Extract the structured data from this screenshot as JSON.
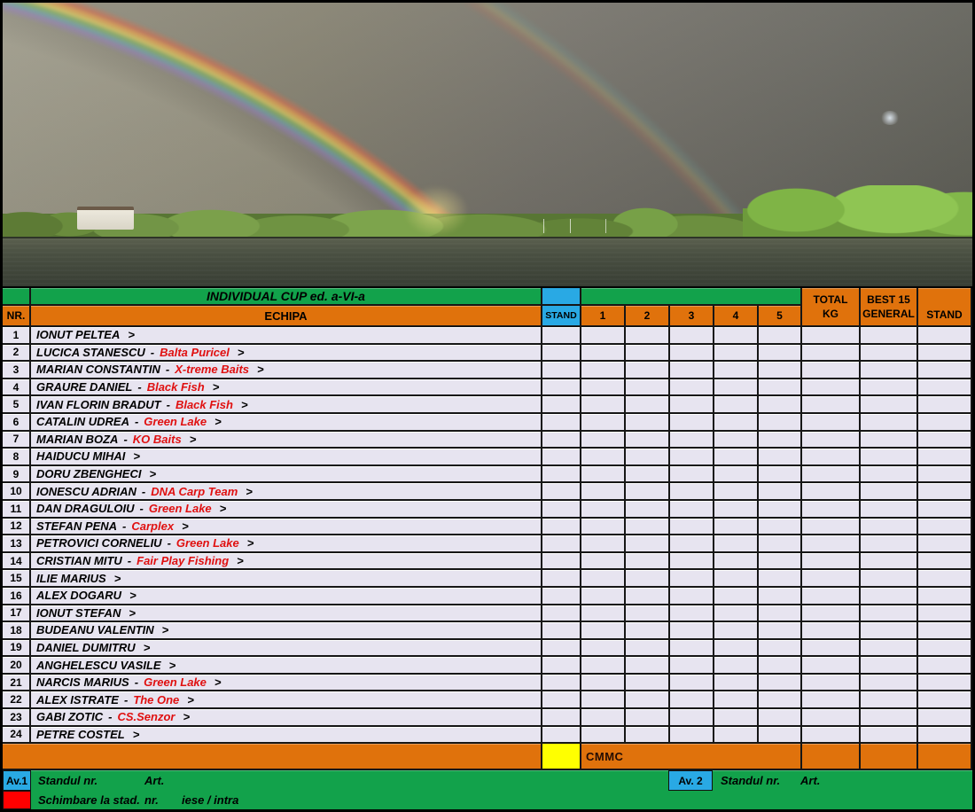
{
  "table": {
    "title": "INDIVIDUAL CUP ed. a-VI-a",
    "headers": {
      "nr": "NR.",
      "echipa": "ECHIPA",
      "stand": "STAND",
      "rounds": [
        "1",
        "2",
        "3",
        "4",
        "5"
      ],
      "total_line1": "TOTAL",
      "total_line2": "KG",
      "best_line1": "BEST 15",
      "best_line2": "GENERAL",
      "stand_right": "STAND"
    },
    "row_arrow": ">",
    "rows": [
      {
        "nr": "1",
        "name": "IONUT PELTEA",
        "team": ""
      },
      {
        "nr": "2",
        "name": "LUCICA STANESCU",
        "team": "Balta Puricel"
      },
      {
        "nr": "3",
        "name": "MARIAN CONSTANTIN",
        "team": "X-treme Baits"
      },
      {
        "nr": "4",
        "name": "GRAURE DANIEL",
        "team": "Black Fish"
      },
      {
        "nr": "5",
        "name": "IVAN FLORIN BRADUT",
        "team": "Black Fish"
      },
      {
        "nr": "6",
        "name": "CATALIN UDREA",
        "team": "Green Lake"
      },
      {
        "nr": "7",
        "name": "MARIAN BOZA",
        "team": "KO Baits"
      },
      {
        "nr": "8",
        "name": "HAIDUCU MIHAI",
        "team": ""
      },
      {
        "nr": "9",
        "name": "DORU ZBENGHECI",
        "team": ""
      },
      {
        "nr": "10",
        "name": "IONESCU ADRIAN",
        "team": "DNA Carp Team"
      },
      {
        "nr": "11",
        "name": "DAN DRAGULOIU",
        "team": "Green Lake"
      },
      {
        "nr": "12",
        "name": "STEFAN PENA",
        "team": "Carplex"
      },
      {
        "nr": "13",
        "name": "PETROVICI CORNELIU",
        "team": "Green Lake"
      },
      {
        "nr": "14",
        "name": "CRISTIAN MITU",
        "team": "Fair Play Fishing"
      },
      {
        "nr": "15",
        "name": "ILIE MARIUS",
        "team": ""
      },
      {
        "nr": "16",
        "name": "ALEX DOGARU",
        "team": ""
      },
      {
        "nr": "17",
        "name": "IONUT STEFAN",
        "team": ""
      },
      {
        "nr": "18",
        "name": "BUDEANU VALENTIN",
        "team": ""
      },
      {
        "nr": "19",
        "name": "DANIEL DUMITRU",
        "team": ""
      },
      {
        "nr": "20",
        "name": "ANGHELESCU VASILE",
        "team": ""
      },
      {
        "nr": "21",
        "name": "NARCIS MARIUS",
        "team": "Green Lake"
      },
      {
        "nr": "22",
        "name": "ALEX ISTRATE",
        "team": "The One"
      },
      {
        "nr": "23",
        "name": "GABI ZOTIC",
        "team": "CS.Senzor"
      },
      {
        "nr": "24",
        "name": "PETRE COSTEL",
        "team": ""
      }
    ],
    "footer": {
      "cmmc": "CMMC"
    }
  },
  "legend": {
    "av1_label": "Av.1",
    "av1_stand_text": "Standul nr.",
    "av1_art_text": "Art.",
    "av2_label": "Av. 2",
    "av2_stand_text": "Standul  nr.",
    "av2_art_text": "Art.",
    "change_text": "Schimbare la stad.",
    "change_nr_text": "nr.",
    "change_inout_text": "iese / intra"
  },
  "colors": {
    "green": "#12A24B",
    "orange": "#E0720C",
    "blue": "#29A9E4",
    "yellow": "#FFFF00",
    "red": "#FF0000",
    "team_red": "#E01010",
    "row_bg": "#E7E4F0"
  }
}
